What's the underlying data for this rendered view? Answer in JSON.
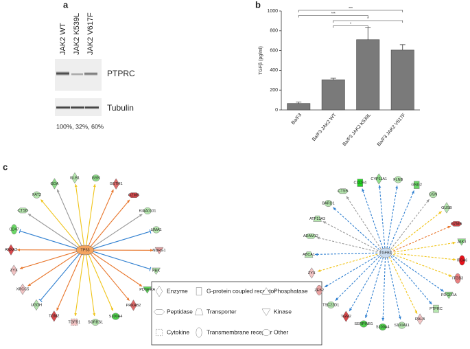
{
  "panels": {
    "a": "a",
    "b": "b",
    "c": "c"
  },
  "blot": {
    "lanes": [
      "JAK2 WT",
      "JAK2 K539L",
      "JAK2 V617F"
    ],
    "proteins": [
      "PTPRC",
      "Tubulin"
    ],
    "quantification": "100%, 32%, 60%"
  },
  "chart_data": {
    "type": "bar",
    "ylabel": "TGFβ  (pg/ml)",
    "categories": [
      "Ba/F3",
      "Ba/F3 JAK2 WT",
      "Ba/F3 JAK2 K539L",
      "Ba/F3 JAK2 V617F"
    ],
    "values": [
      65,
      305,
      710,
      605
    ],
    "errors": [
      15,
      15,
      120,
      55
    ],
    "color": "#7a7a7a",
    "ylim": [
      0,
      1000
    ],
    "yticks": [
      0,
      200,
      400,
      600,
      800,
      1000
    ],
    "significance": [
      {
        "from": "Ba/F3",
        "to": "Ba/F3 JAK2 V617F",
        "label": "***"
      },
      {
        "from": "Ba/F3",
        "to": "Ba/F3 JAK2 K539L",
        "label": "***"
      },
      {
        "from": "Ba/F3 JAK2 WT",
        "to": "Ba/F3 JAK2 V617F",
        "label": "*"
      },
      {
        "from": "Ba/F3 JAK2 WT",
        "to": "Ba/F3 JAK2 K539L",
        "label": "*"
      }
    ]
  },
  "networks": [
    {
      "center": "TP53",
      "center_color": "#f4a460",
      "dashed": false,
      "nodes": [
        {
          "label": "GLB1",
          "shape": "diamond",
          "color": "#b5e6ae",
          "edge": "#f0c419"
        },
        {
          "label": "GSN",
          "shape": "circle",
          "color": "#8fdc8a",
          "edge": "#f0c419"
        },
        {
          "label": "GSTM1",
          "shape": "diamond",
          "color": "#e06a6a",
          "edge": "#e8752a"
        },
        {
          "label": "GZMB",
          "shape": "hexagon",
          "color": "#d9474a",
          "edge": "#e8752a"
        },
        {
          "label": "KIAA0101",
          "shape": "circle",
          "color": "#b5e6ae",
          "edge": "#999999"
        },
        {
          "label": "LIMA1",
          "shape": "circle",
          "color": "#b5e6ae",
          "edge": "#2f7fd0"
        },
        {
          "label": "NDRG1",
          "shape": "kinase",
          "color": "#eba3a3",
          "edge": "#e8752a"
        },
        {
          "label": "PBK",
          "shape": "kinase",
          "color": "#b5e6ae",
          "edge": "#2f7fd0"
        },
        {
          "label": "PDGFRA",
          "shape": "kinase",
          "color": "#5fd35a",
          "edge": "#e8752a"
        },
        {
          "label": "PRKAB2",
          "shape": "diamond",
          "color": "#e06a6a",
          "edge": "#e8752a"
        },
        {
          "label": "S100A4",
          "shape": "circle",
          "color": "#4fcf4a",
          "edge": "#f0c419"
        },
        {
          "label": "SORBS1",
          "shape": "circle",
          "color": "#b5e6ae",
          "edge": "#f0c419"
        },
        {
          "label": "TGFB1",
          "shape": "cytokine",
          "color": "#f2c4c4",
          "edge": "#f0c419"
        },
        {
          "label": "TGM2",
          "shape": "diamond",
          "color": "#d9474a",
          "edge": "#e8752a"
        },
        {
          "label": "UGDH",
          "shape": "diamond",
          "color": "#b5e6ae",
          "edge": "#2f7fd0"
        },
        {
          "label": "XRCC5",
          "shape": "diamond",
          "color": "#f2c4c4",
          "edge": "#e8752a"
        },
        {
          "label": "ZYX",
          "shape": "diamond",
          "color": "#f2c4c4",
          "edge": "#e8752a"
        },
        {
          "label": "ANXA3",
          "shape": "diamond",
          "color": "#d9474a",
          "edge": "#e8752a"
        },
        {
          "label": "CD47",
          "shape": "ellipse",
          "color": "#6bd866",
          "edge": "#2f7fd0"
        },
        {
          "label": "CTSB",
          "shape": "hexagon",
          "color": "#b5e6ae",
          "edge": "#999999"
        },
        {
          "label": "FAT2",
          "shape": "circle",
          "color": "#b5e6ae",
          "edge": "#f0c419"
        },
        {
          "label": "GDA",
          "shape": "diamond",
          "color": "#8fdc8a",
          "edge": "#999999"
        }
      ]
    },
    {
      "center": "TGFB1",
      "center_color": "#c9dcf0",
      "dashed": true,
      "nodes": [
        {
          "label": "CYP11A1",
          "shape": "diamond",
          "color": "#8fdc8a",
          "edge": "#2f7fd0"
        },
        {
          "label": "FLNB",
          "shape": "circle",
          "color": "#b5e6ae",
          "edge": "#2f7fd0"
        },
        {
          "label": "GNG2",
          "shape": "rect",
          "color": "#6bd866",
          "edge": "#2f7fd0"
        },
        {
          "label": "GSN",
          "shape": "circle",
          "color": "#b5e6ae",
          "edge": "#999999"
        },
        {
          "label": "GUSB",
          "shape": "diamond",
          "color": "#b5e6ae",
          "edge": "#f0c419"
        },
        {
          "label": "GZMB",
          "shape": "hexagon",
          "color": "#d9474a",
          "edge": "#e8752a"
        },
        {
          "label": "JAK3",
          "shape": "kinase",
          "color": "#8fdc8a",
          "edge": "#f0c419"
        },
        {
          "label": "ITGA6",
          "shape": "ellipse",
          "color": "#e8111a",
          "edge": "#f0c419"
        },
        {
          "label": "ITGB3",
          "shape": "ellipse",
          "color": "#e88080",
          "edge": "#f0c419"
        },
        {
          "label": "PDGFRA",
          "shape": "kinase",
          "color": "#8fdc8a",
          "edge": "#2f7fd0"
        },
        {
          "label": "PTPRC",
          "shape": "rect",
          "color": "#b5e6ae",
          "edge": "#2f7fd0"
        },
        {
          "label": "RALB",
          "shape": "diamond",
          "color": "#f2c4c4",
          "edge": "#f0c419"
        },
        {
          "label": "S100A11",
          "shape": "circle",
          "color": "#b5e6ae",
          "edge": "#2f7fd0"
        },
        {
          "label": "S100A4",
          "shape": "circle",
          "color": "#4fcf4a",
          "edge": "#2f7fd0"
        },
        {
          "label": "SERPINB1",
          "shape": "circle",
          "color": "#4fcf4a",
          "edge": "#2f7fd0"
        },
        {
          "label": "TGM2",
          "shape": "diamond",
          "color": "#d9474a",
          "edge": "#2f7fd0"
        },
        {
          "label": "TSC22D1",
          "shape": "circle",
          "color": "#b5e6ae",
          "edge": "#2f7fd0"
        },
        {
          "label": "ZEB2",
          "shape": "ellipse",
          "color": "#eba3a3",
          "edge": "#2f7fd0"
        },
        {
          "label": "ZYX",
          "shape": "diamond",
          "color": "#f2c4c4",
          "edge": "#f0c419"
        },
        {
          "label": "ABCA1",
          "shape": "transporter",
          "color": "#b5e6ae",
          "edge": "#2f7fd0"
        },
        {
          "label": "ADAM12",
          "shape": "hexagon",
          "color": "#b5e6ae",
          "edge": "#999999"
        },
        {
          "label": "ATP13A3",
          "shape": "transporter",
          "color": "#b5e6ae",
          "edge": "#999999"
        },
        {
          "label": "BARD1",
          "shape": "circle",
          "color": "#b5e6ae",
          "edge": "#2f7fd0"
        },
        {
          "label": "CTSB",
          "shape": "hexagon",
          "color": "#b5e6ae",
          "edge": "#999999"
        },
        {
          "label": "CXCR4",
          "shape": "rect",
          "color": "#22d422",
          "edge": "#2f7fd0"
        }
      ]
    }
  ],
  "legend": [
    {
      "label": "Enzyme",
      "shape": "diamond"
    },
    {
      "label": "G-protein coupled receptor",
      "shape": "rect"
    },
    {
      "label": "Phosphatase",
      "shape": "triangle"
    },
    {
      "label": "Peptidase",
      "shape": "hexagon"
    },
    {
      "label": "Transporter",
      "shape": "transporter"
    },
    {
      "label": "Kinase",
      "shape": "kinase"
    },
    {
      "label": "Cytokine",
      "shape": "cytokine"
    },
    {
      "label": "Transmembrane receptor",
      "shape": "ellipse"
    },
    {
      "label": "Other",
      "shape": "circle"
    }
  ]
}
